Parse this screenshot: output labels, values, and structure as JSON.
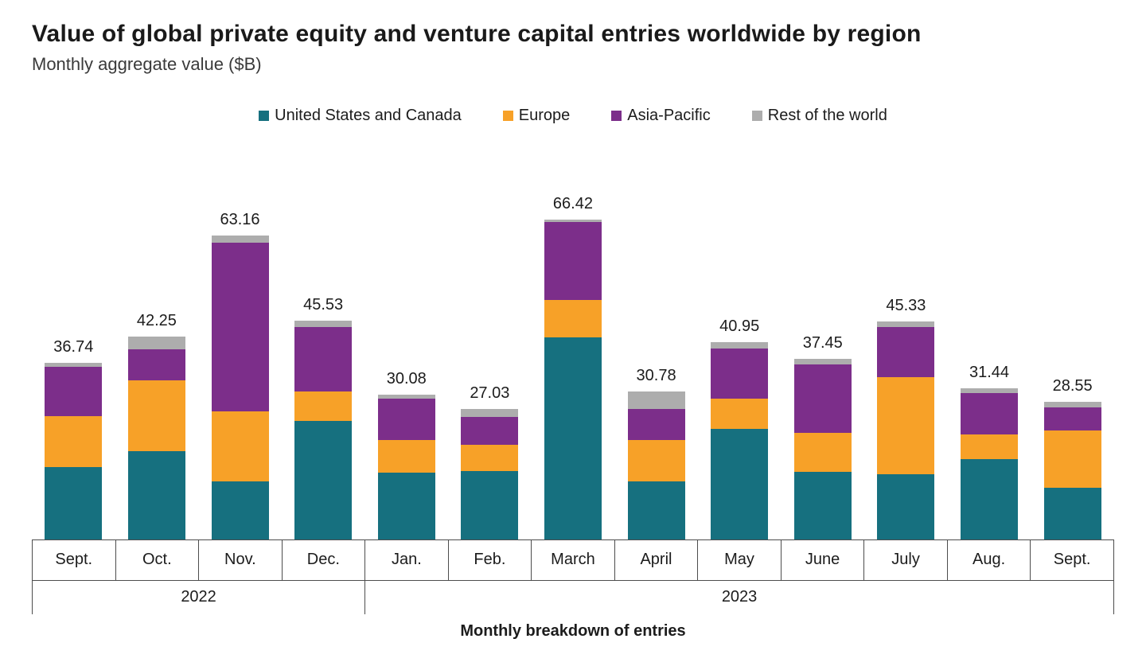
{
  "title": "Value of global private equity and venture capital entries worldwide by region",
  "subtitle": "Monthly aggregate value ($B)",
  "xlabel": "Monthly breakdown of entries",
  "colors": {
    "us_canada": "#16707F",
    "europe": "#F7A128",
    "asia_pacific": "#7C2E8A",
    "rest_of_world": "#ADADAD",
    "axis_line": "#4d4d4d"
  },
  "legend": [
    {
      "label": "United States and Canada",
      "color": "#16707F"
    },
    {
      "label": "Europe",
      "color": "#F7A128"
    },
    {
      "label": "Asia-Pacific",
      "color": "#7C2E8A"
    },
    {
      "label": "Rest of the world",
      "color": "#ADADAD"
    }
  ],
  "chart_data": {
    "type": "bar",
    "stacked": true,
    "title": "Value of global private equity and venture capital entries worldwide by region",
    "subtitle": "Monthly aggregate value ($B)",
    "xlabel": "Monthly breakdown of entries",
    "ylabel": "Monthly aggregate value ($B)",
    "grid": false,
    "legend_position": "top",
    "categories": [
      "Sept.",
      "Oct.",
      "Nov.",
      "Dec.",
      "Jan.",
      "Feb.",
      "March",
      "April",
      "May",
      "June",
      "July",
      "Aug.",
      "Sept."
    ],
    "year_groups": [
      {
        "label": "2022",
        "span": 4
      },
      {
        "label": "2023",
        "span": 9
      }
    ],
    "totals": [
      36.74,
      42.25,
      63.16,
      45.53,
      30.08,
      27.03,
      66.42,
      30.78,
      40.95,
      37.45,
      45.33,
      31.44,
      28.55
    ],
    "series": [
      {
        "name": "United States and Canada",
        "color": "#16707F",
        "values": [
          15.0,
          18.4,
          12.1,
          24.6,
          13.9,
          14.3,
          42.0,
          12.0,
          23.0,
          14.0,
          13.6,
          16.7,
          10.7
        ]
      },
      {
        "name": "Europe",
        "color": "#F7A128",
        "values": [
          10.6,
          14.6,
          14.5,
          6.1,
          6.7,
          5.4,
          7.8,
          8.7,
          6.3,
          8.2,
          20.2,
          5.2,
          12.0
        ]
      },
      {
        "name": "Asia-Pacific",
        "color": "#7C2E8A",
        "values": [
          10.3,
          6.6,
          35.0,
          13.5,
          8.7,
          5.8,
          16.1,
          6.5,
          10.4,
          14.1,
          10.3,
          8.5,
          4.8
        ]
      },
      {
        "name": "Rest of the world",
        "color": "#ADADAD",
        "values": [
          0.84,
          2.65,
          1.56,
          1.33,
          0.78,
          1.53,
          0.52,
          3.58,
          1.25,
          1.15,
          1.23,
          1.04,
          1.05
        ]
      }
    ]
  }
}
